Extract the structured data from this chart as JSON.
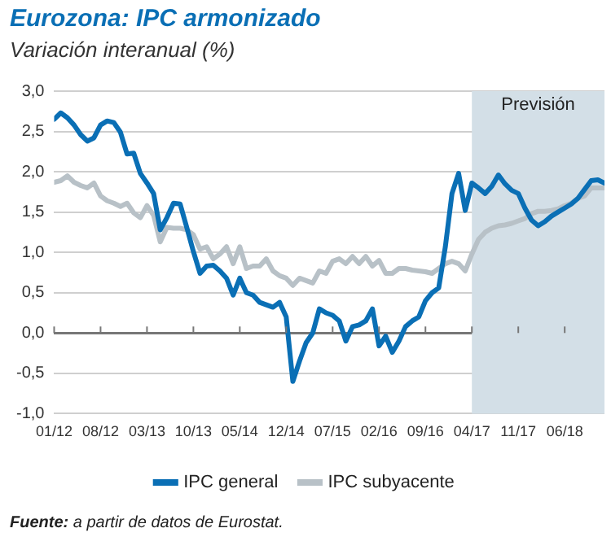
{
  "chart_data": {
    "type": "line",
    "title": "Eurozona: IPC armonizado",
    "subtitle": "Variación interanual (%)",
    "annotations": [
      "Fuente: a partir de datos de Eurostat."
    ],
    "x": [
      "2012-01",
      "2012-02",
      "2012-03",
      "2012-04",
      "2012-05",
      "2012-06",
      "2012-07",
      "2012-08",
      "2012-09",
      "2012-10",
      "2012-11",
      "2012-12",
      "2013-01",
      "2013-02",
      "2013-03",
      "2013-04",
      "2013-05",
      "2013-06",
      "2013-07",
      "2013-08",
      "2013-09",
      "2013-10",
      "2013-11",
      "2013-12",
      "2014-01",
      "2014-02",
      "2014-03",
      "2014-04",
      "2014-05",
      "2014-06",
      "2014-07",
      "2014-08",
      "2014-09",
      "2014-10",
      "2014-11",
      "2014-12",
      "2015-01",
      "2015-02",
      "2015-03",
      "2015-04",
      "2015-05",
      "2015-06",
      "2015-07",
      "2015-08",
      "2015-09",
      "2015-10",
      "2015-11",
      "2015-12",
      "2016-01",
      "2016-02",
      "2016-03",
      "2016-04",
      "2016-05",
      "2016-06",
      "2016-07",
      "2016-08",
      "2016-09",
      "2016-10",
      "2016-11",
      "2016-12",
      "2017-01",
      "2017-02",
      "2017-03",
      "2017-04",
      "2017-05",
      "2017-06",
      "2017-07",
      "2017-08",
      "2017-09",
      "2017-10",
      "2017-11",
      "2017-12",
      "2018-01",
      "2018-02",
      "2018-03",
      "2018-04",
      "2018-05",
      "2018-06",
      "2018-07",
      "2018-08",
      "2018-09",
      "2018-10",
      "2018-11",
      "2018-12"
    ],
    "series": [
      {
        "name": "IPC general",
        "color": "#0a6fb5",
        "values": [
          2.65,
          2.73,
          2.67,
          2.58,
          2.46,
          2.38,
          2.42,
          2.58,
          2.63,
          2.61,
          2.49,
          2.22,
          2.23,
          1.98,
          1.86,
          1.73,
          1.28,
          1.43,
          1.61,
          1.6,
          1.31,
          1.01,
          0.74,
          0.83,
          0.84,
          0.77,
          0.68,
          0.47,
          0.68,
          0.5,
          0.47,
          0.38,
          0.35,
          0.32,
          0.38,
          0.2,
          -0.6,
          -0.35,
          -0.12,
          0,
          0.3,
          0.25,
          0.22,
          0.15,
          -0.1,
          0.08,
          0.1,
          0.15,
          0.3,
          -0.16,
          -0.04,
          -0.24,
          -0.1,
          0.08,
          0.15,
          0.2,
          0.4,
          0.5,
          0.56,
          1.07,
          1.73,
          1.98,
          1.52,
          1.86,
          1.8,
          1.73,
          1.82,
          1.96,
          1.85,
          1.77,
          1.73,
          1.55,
          1.4,
          1.33,
          1.38,
          1.45,
          1.5,
          1.55,
          1.6,
          1.67,
          1.78,
          1.89,
          1.9,
          1.86
        ]
      },
      {
        "name": "IPC subyacente",
        "color": "#b8c1c7",
        "values": [
          1.87,
          1.89,
          1.95,
          1.87,
          1.83,
          1.8,
          1.86,
          1.7,
          1.64,
          1.61,
          1.57,
          1.61,
          1.49,
          1.43,
          1.58,
          1.46,
          1.13,
          1.31,
          1.3,
          1.3,
          1.28,
          1.22,
          1.04,
          1.07,
          0.92,
          0.98,
          1.07,
          0.86,
          1.07,
          0.8,
          0.83,
          0.83,
          0.92,
          0.77,
          0.71,
          0.68,
          0.59,
          0.68,
          0.65,
          0.62,
          0.77,
          0.74,
          0.89,
          0.92,
          0.86,
          0.95,
          0.86,
          0.95,
          0.83,
          0.9,
          0.74,
          0.74,
          0.8,
          0.8,
          0.78,
          0.77,
          0.76,
          0.74,
          0.8,
          0.86,
          0.89,
          0.86,
          0.77,
          0.98,
          1.16,
          1.25,
          1.3,
          1.33,
          1.34,
          1.36,
          1.39,
          1.42,
          1.48,
          1.51,
          1.51,
          1.52,
          1.54,
          1.58,
          1.61,
          1.67,
          1.7,
          1.8,
          1.8,
          1.8
        ]
      }
    ],
    "xlim": [
      "2012-01",
      "2018-12"
    ],
    "xticks": [
      {
        "value": "2012-01",
        "label": "01/12"
      },
      {
        "value": "2012-08",
        "label": "08/12"
      },
      {
        "value": "2013-03",
        "label": "03/13"
      },
      {
        "value": "2013-10",
        "label": "10/13"
      },
      {
        "value": "2014-05",
        "label": "05/14"
      },
      {
        "value": "2014-12",
        "label": "12/14"
      },
      {
        "value": "2015-07",
        "label": "07/15"
      },
      {
        "value": "2016-02",
        "label": "02/16"
      },
      {
        "value": "2016-09",
        "label": "09/16"
      },
      {
        "value": "2017-04",
        "label": "04/17"
      },
      {
        "value": "2017-11",
        "label": "11/17"
      },
      {
        "value": "2018-06",
        "label": "06/18"
      }
    ],
    "ylim": [
      -1,
      3
    ],
    "yticks": [
      {
        "value": -1,
        "label": "-1,0"
      },
      {
        "value": -0.5,
        "label": "-0,5"
      },
      {
        "value": 0,
        "label": "0,0"
      },
      {
        "value": 0.5,
        "label": "0,5"
      },
      {
        "value": 1,
        "label": "1,0"
      },
      {
        "value": 1.5,
        "label": "1,5"
      },
      {
        "value": 2,
        "label": "2,0"
      },
      {
        "value": 2.5,
        "label": "2,5"
      },
      {
        "value": 3,
        "label": "3,0"
      }
    ],
    "bands": [
      {
        "axis": "x",
        "from": "2017-04",
        "to": "2018-12",
        "label": "Previsión",
        "color": "#d3dfe7"
      }
    ],
    "grid": "y",
    "legend": "bottom",
    "marker": "none",
    "line_style": "solid"
  }
}
